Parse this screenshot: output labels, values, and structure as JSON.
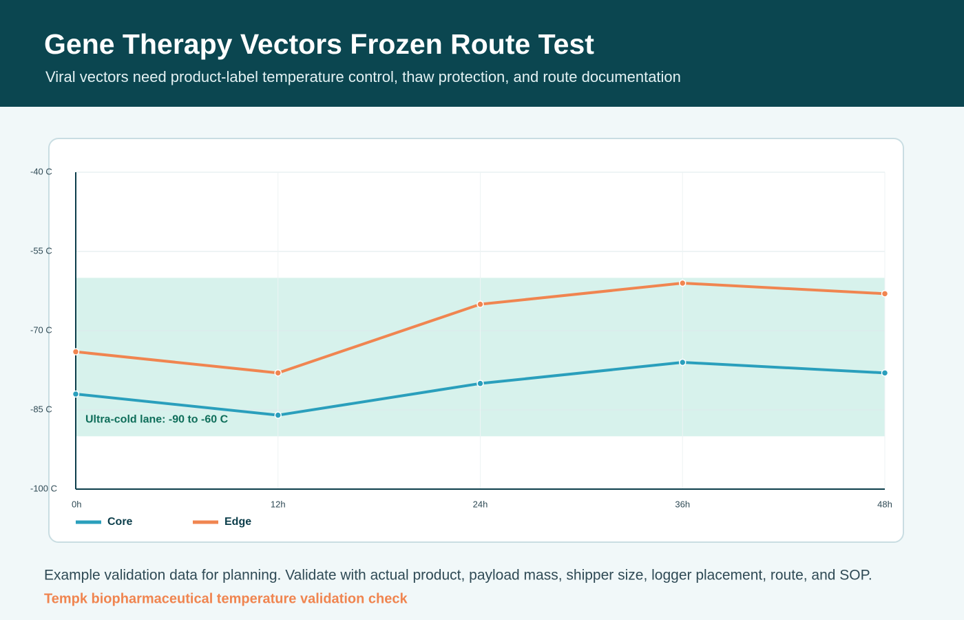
{
  "header": {
    "title": "Gene Therapy Vectors Frozen Route Test",
    "subtitle": "Viral vectors need product-label temperature control, thaw protection, and route documentation"
  },
  "chart_data": {
    "type": "line",
    "categories": [
      "0h",
      "12h",
      "24h",
      "36h",
      "48h"
    ],
    "series": [
      {
        "name": "Core",
        "color": "#2a9fbc",
        "values": [
          -82,
          -86,
          -80,
          -76,
          -78
        ]
      },
      {
        "name": "Edge",
        "color": "#f08550",
        "values": [
          -74,
          -78,
          -65,
          -61,
          -63
        ]
      }
    ],
    "ylim": [
      -100,
      -40
    ],
    "yticks": [
      {
        "value": -100,
        "label": "-100 C"
      },
      {
        "value": -85,
        "label": "-85 C"
      },
      {
        "value": -70,
        "label": "-70 C"
      },
      {
        "value": -55,
        "label": "-55 C"
      },
      {
        "value": -40,
        "label": "-40 C"
      }
    ],
    "grid": true,
    "band": {
      "from": -90,
      "to": -60,
      "label": "Ultra-cold lane: -90 to -60 C",
      "color": "#d7f2ec"
    }
  },
  "footer": {
    "note": "Example validation data for planning. Validate with actual product, payload mass, shipper size, logger placement, route, and SOP.",
    "source": "Tempk biopharmaceutical temperature validation check"
  }
}
